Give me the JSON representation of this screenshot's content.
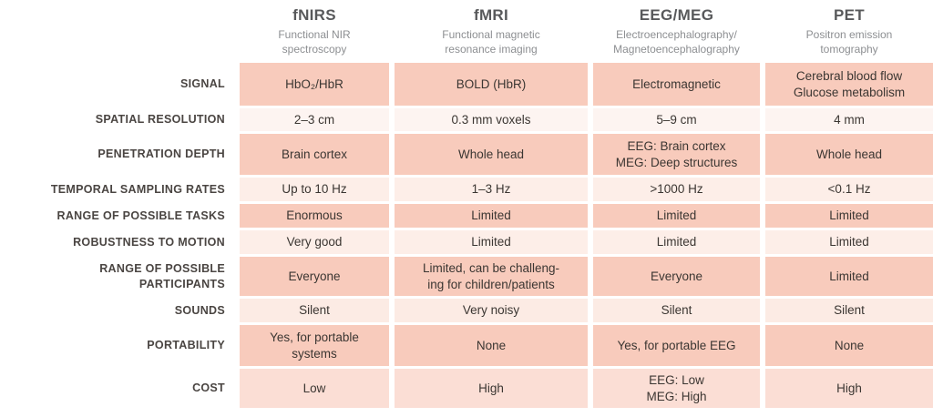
{
  "palette": {
    "row_medium_salmon": "#f8cbbc",
    "row_lightest_pink": "#fdf4f1",
    "row_light_pink": "#fdeee8",
    "row_sounds_pink": "#fcebe4",
    "row_cost_pink": "#fbded5",
    "header_title_color": "#58595b",
    "header_subtitle_color": "#8d8f92",
    "row_label_color": "#4a4542",
    "cell_text_color": "#3b3632",
    "background": "#ffffff"
  },
  "chart_data": {
    "type": "table",
    "columns": [
      {
        "title": "fNIRS",
        "subtitle": "Functional NIR\nspectroscopy"
      },
      {
        "title": "fMRI",
        "subtitle": "Functional magnetic\nresonance imaging"
      },
      {
        "title": "EEG/MEG",
        "subtitle": "Electroencephalography/\nMagnetoencephalography"
      },
      {
        "title": "PET",
        "subtitle": "Positron emission\ntomography"
      }
    ],
    "rows": [
      {
        "label": "SIGNAL",
        "cells": [
          "HbO₂/HbR",
          "BOLD (HbR)",
          "Electromagnetic",
          "Cerebral blood flow\nGlucose metabolism"
        ]
      },
      {
        "label": "SPATIAL RESOLUTION",
        "cells": [
          "2–3 cm",
          "0.3 mm voxels",
          "5–9 cm",
          "4 mm"
        ]
      },
      {
        "label": "PENETRATION DEPTH",
        "cells": [
          "Brain cortex",
          "Whole head",
          "EEG: Brain cortex\nMEG: Deep structures",
          "Whole head"
        ]
      },
      {
        "label": "TEMPORAL SAMPLING RATES",
        "cells": [
          "Up to 10 Hz",
          "1–3 Hz",
          ">1000 Hz",
          "<0.1 Hz"
        ]
      },
      {
        "label": "RANGE OF POSSIBLE TASKS",
        "cells": [
          "Enormous",
          "Limited",
          "Limited",
          "Limited"
        ]
      },
      {
        "label": "ROBUSTNESS TO MOTION",
        "cells": [
          "Very good",
          "Limited",
          "Limited",
          "Limited"
        ]
      },
      {
        "label": "RANGE OF POSSIBLE\nPARTICIPANTS",
        "cells": [
          "Everyone",
          "Limited, can be challeng-\ning for children/patients",
          "Everyone",
          "Limited"
        ]
      },
      {
        "label": "SOUNDS",
        "cells": [
          "Silent",
          "Very noisy",
          "Silent",
          "Silent"
        ]
      },
      {
        "label": "PORTABILITY",
        "cells": [
          "Yes, for portable\nsystems",
          "None",
          "Yes, for portable EEG",
          "None"
        ]
      },
      {
        "label": "COST",
        "cells": [
          "Low",
          "High",
          "EEG: Low\nMEG: High",
          "High"
        ]
      }
    ]
  }
}
